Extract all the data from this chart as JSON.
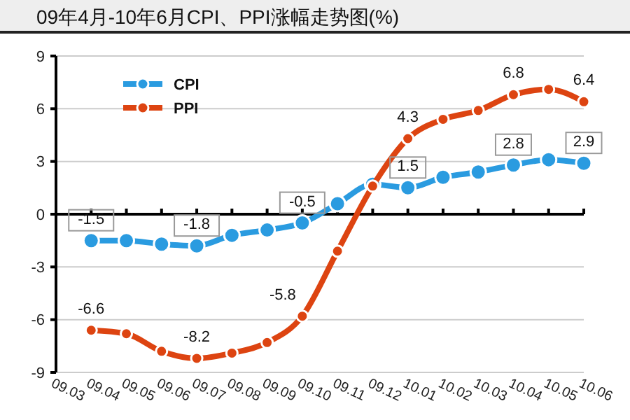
{
  "chart_data": {
    "type": "line",
    "title": "09年4月-10年6月CPI、PPI涨幅走势图(%)",
    "categories": [
      "09.03",
      "09.04",
      "09.05",
      "09.06",
      "09.07",
      "09.08",
      "09.09",
      "09.10",
      "09.11",
      "09.12",
      "10.01",
      "10.02",
      "10.03",
      "10.04",
      "10.05",
      "10.06"
    ],
    "series": [
      {
        "name": "CPI",
        "color": "#2a9be0",
        "values": [
          null,
          -1.5,
          -1.5,
          -1.7,
          -1.8,
          -1.2,
          -0.9,
          -0.5,
          0.6,
          1.7,
          1.5,
          2.1,
          2.4,
          2.8,
          3.1,
          2.9
        ],
        "value_labels": [
          null,
          "-1.5",
          null,
          null,
          "-1.8",
          null,
          null,
          "-0.5",
          null,
          null,
          "1.5",
          null,
          null,
          "2.8",
          null,
          "2.9"
        ]
      },
      {
        "name": "PPI",
        "color": "#dd4411",
        "values": [
          null,
          -6.6,
          -6.8,
          -7.8,
          -8.2,
          -7.9,
          -7.3,
          -5.8,
          -2.1,
          1.6,
          4.3,
          5.4,
          5.9,
          6.8,
          7.1,
          6.4
        ],
        "value_labels": [
          null,
          "-6.6",
          null,
          null,
          "-8.2",
          null,
          null,
          "-5.8",
          null,
          null,
          "4.3",
          null,
          null,
          "6.8",
          null,
          "6.4"
        ]
      }
    ],
    "ylim": [
      -9,
      9
    ],
    "yticks": [
      -9,
      -6,
      -3,
      0,
      3,
      6,
      9
    ],
    "grid": "y",
    "legend": "top left",
    "marker": "circle",
    "line_style": "solid"
  }
}
